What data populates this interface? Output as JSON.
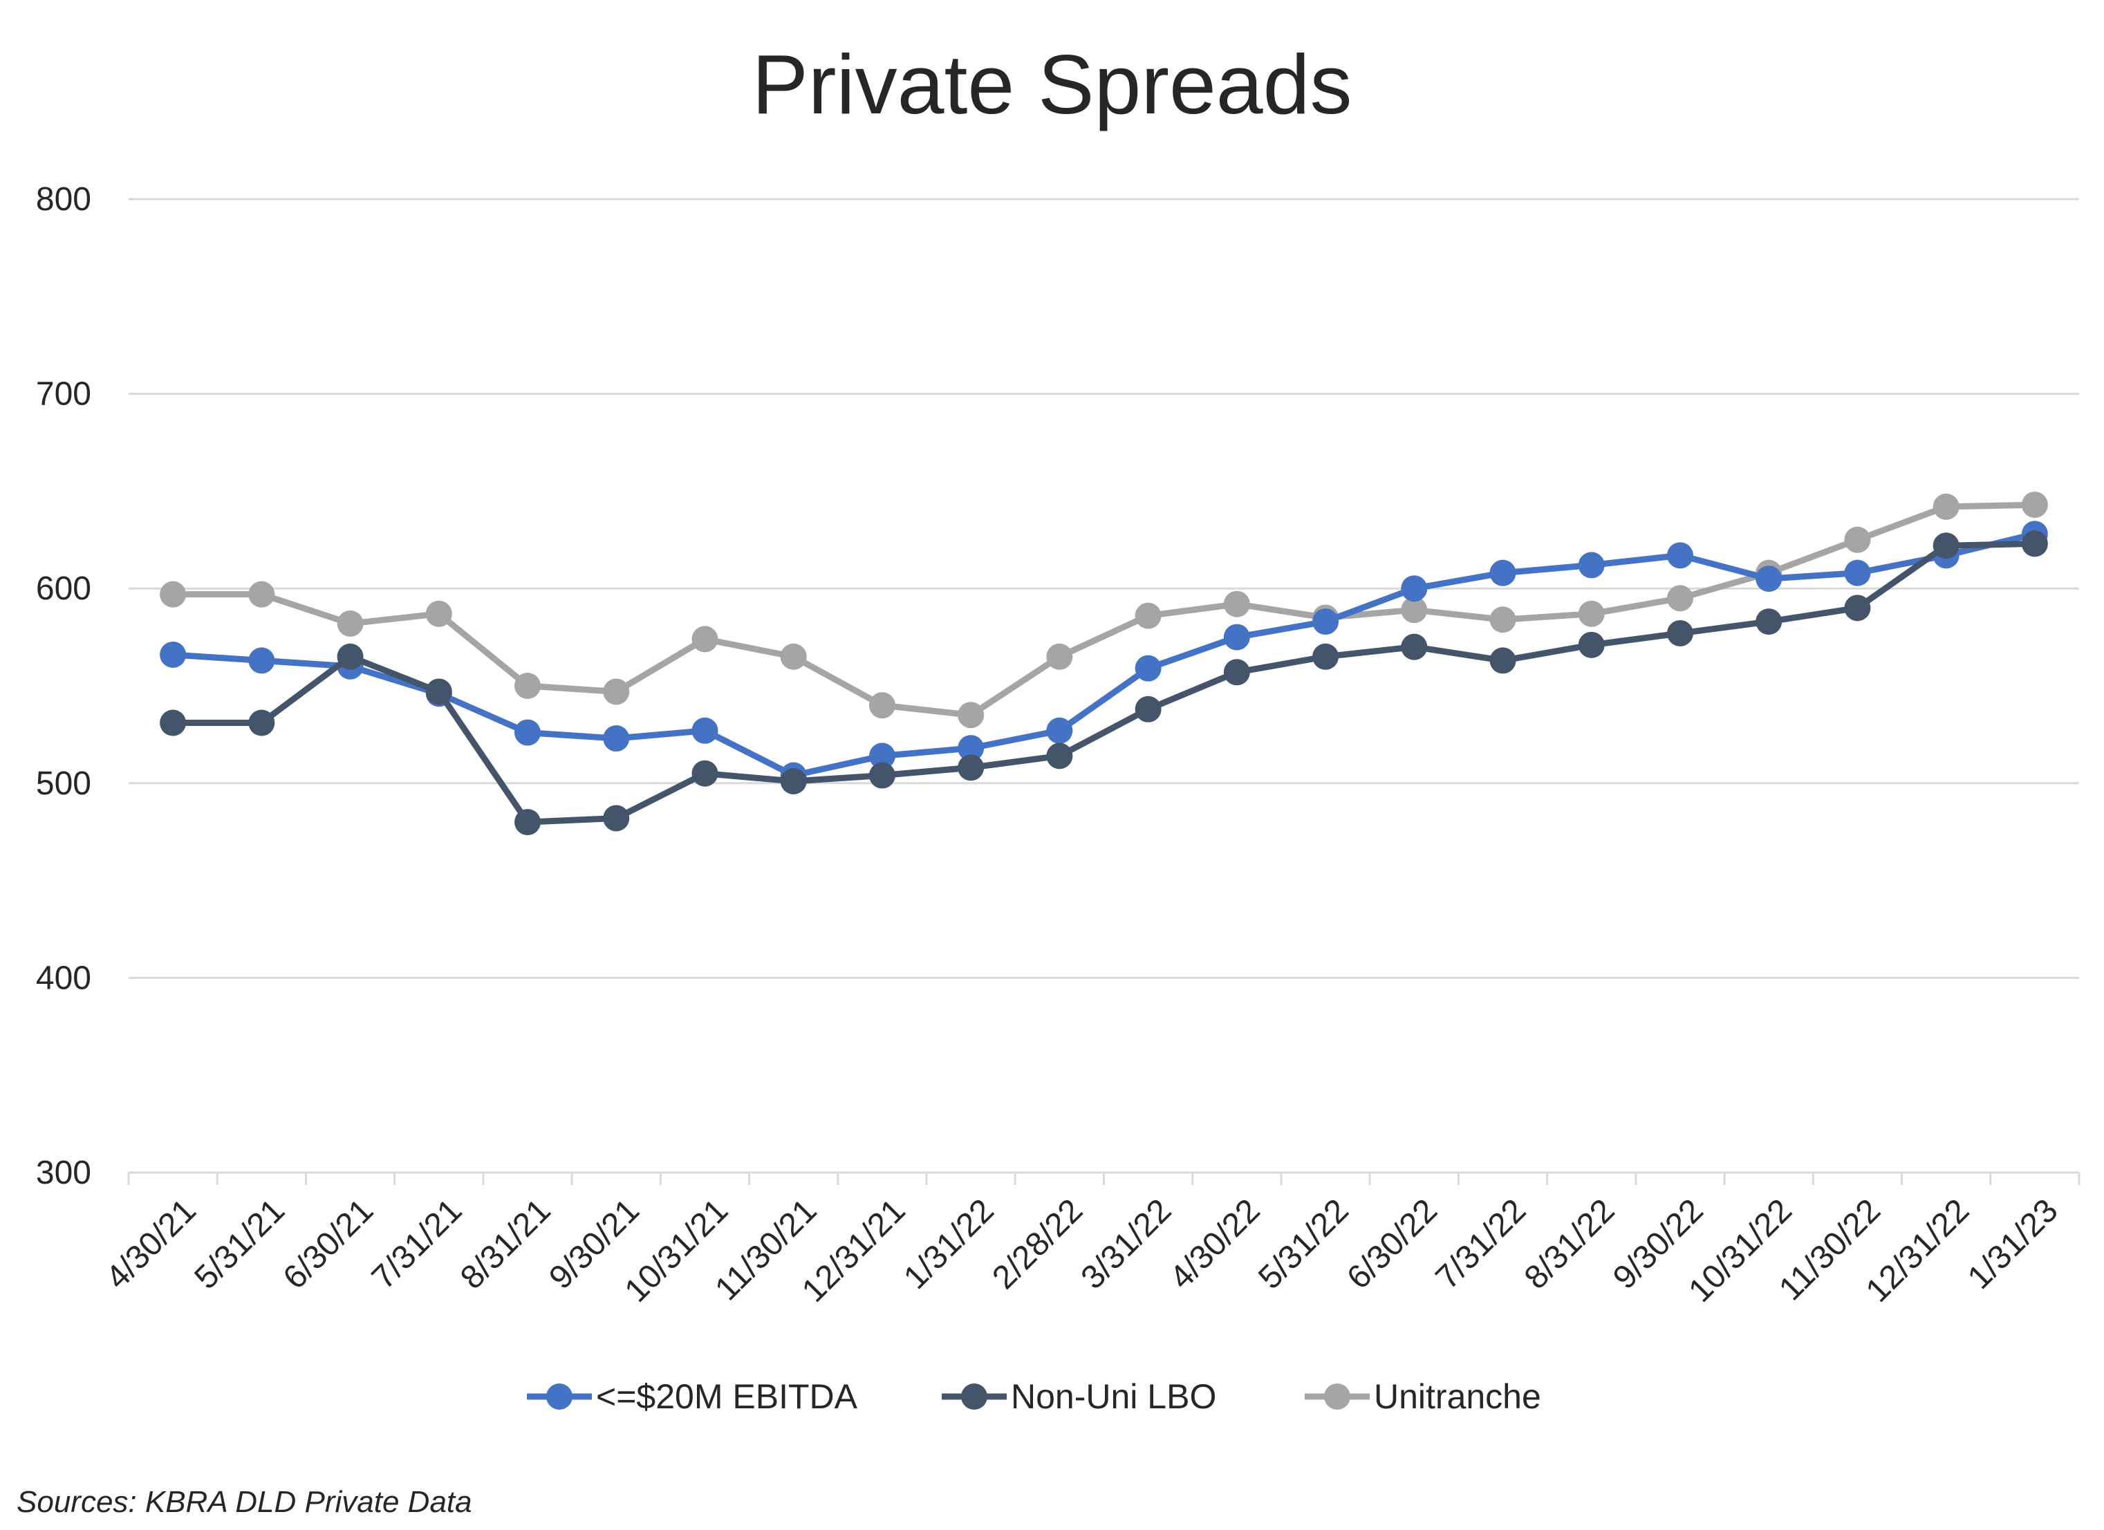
{
  "chart_data": {
    "type": "line",
    "title": "Private Spreads",
    "xlabel": "",
    "ylabel": "",
    "ylim": [
      300,
      800
    ],
    "yticks": [
      "800",
      "700",
      "600",
      "500",
      "400",
      "300"
    ],
    "grid": true,
    "legend_position": "bottom",
    "categories": [
      "4/30/21",
      "5/31/21",
      "6/30/21",
      "7/31/21",
      "8/31/21",
      "9/30/21",
      "10/31/21",
      "11/30/21",
      "12/31/21",
      "1/31/22",
      "2/28/22",
      "3/31/22",
      "4/30/22",
      "5/31/22",
      "6/30/22",
      "7/31/22",
      "8/31/22",
      "9/30/22",
      "10/31/22",
      "11/30/22",
      "12/31/22",
      "1/31/23"
    ],
    "series": [
      {
        "name": "<=$20M EBITDA",
        "color": "#4472C4",
        "values": [
          566,
          563,
          560,
          546,
          526,
          523,
          527,
          504,
          514,
          518,
          527,
          559,
          575,
          583,
          600,
          608,
          612,
          617,
          605,
          608,
          617,
          628
        ]
      },
      {
        "name": "Non-Uni LBO",
        "color": "#44546A",
        "values": [
          531,
          531,
          565,
          547,
          480,
          482,
          505,
          501,
          504,
          508,
          514,
          538,
          557,
          565,
          570,
          563,
          571,
          577,
          583,
          590,
          622,
          623
        ]
      },
      {
        "name": "Unitranche",
        "color": "#A5A5A5",
        "values": [
          597,
          597,
          582,
          587,
          550,
          547,
          574,
          565,
          540,
          535,
          565,
          586,
          592,
          585,
          589,
          584,
          587,
          595,
          608,
          625,
          642,
          643
        ]
      }
    ]
  },
  "source": "Sources: KBRA DLD Private Data"
}
